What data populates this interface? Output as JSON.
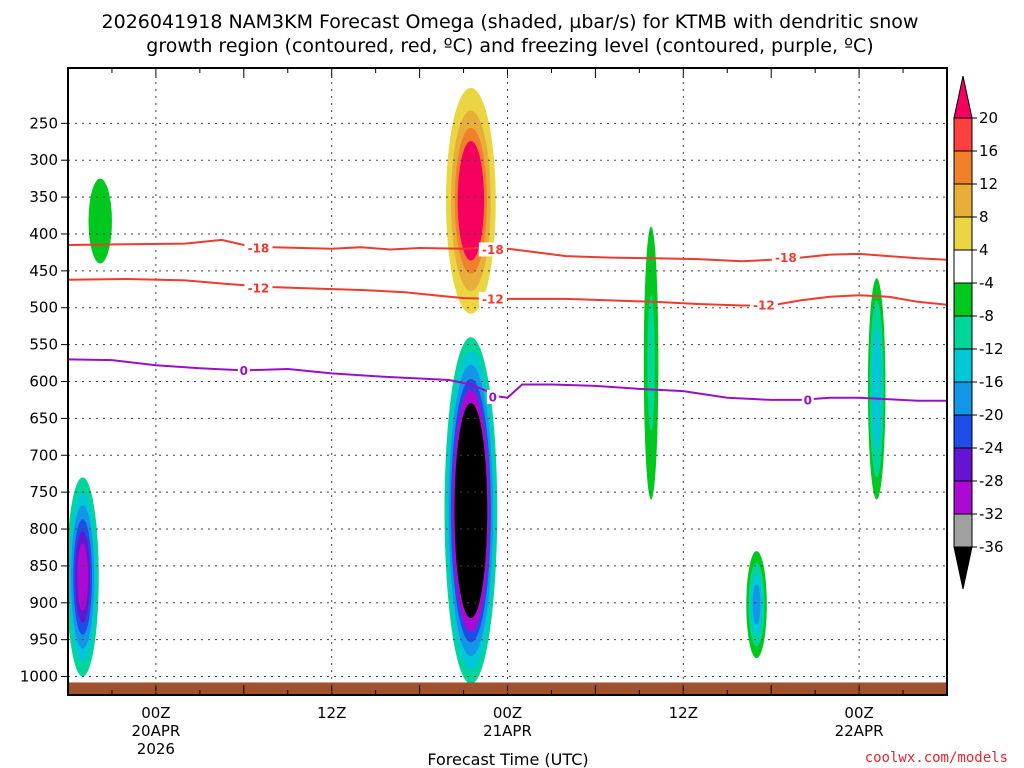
{
  "chart_data": {
    "type": "heatmap",
    "title_line1": "2026041918 NAM3KM Forecast Omega (shaded, µbar/s) for KTMB with dendritic snow",
    "title_line2": "growth region (contoured, red, ºC) and freezing level (contoured, purple, ºC)",
    "xlabel": "Forecast Time (UTC)",
    "credit": "coolwx.com/models",
    "x_unit": "forecast hours",
    "xlim": [
      0,
      60
    ],
    "x_ticks": [
      {
        "h": 6,
        "line1": "00Z",
        "line2": "20APR",
        "line3": "2026"
      },
      {
        "h": 18,
        "line1": "12Z"
      },
      {
        "h": 30,
        "line1": "00Z",
        "line2": "21APR"
      },
      {
        "h": 42,
        "line1": "12Z"
      },
      {
        "h": 54,
        "line1": "00Z",
        "line2": "22APR"
      }
    ],
    "ylim": [
      1025,
      175
    ],
    "y_ticks": [
      250,
      300,
      350,
      400,
      450,
      500,
      550,
      600,
      650,
      700,
      750,
      800,
      850,
      900,
      950,
      1000
    ],
    "colorbar": {
      "labels": [
        "20",
        "16",
        "12",
        "8",
        "4",
        "-4",
        "-8",
        "-12",
        "-16",
        "-20",
        "-24",
        "-28",
        "-32",
        "-36"
      ],
      "colors": [
        "#f5005f",
        "#ff4040",
        "#f0802a",
        "#e8ae3a",
        "#ecd543",
        "#ffffff",
        "#00c81e",
        "#00d69a",
        "#00c8d6",
        "#1496e8",
        "#1e4ce8",
        "#6414d2",
        "#aa0ad2",
        "#a0a0a0",
        "#000000"
      ]
    },
    "dgz_contours": [
      {
        "level": "-18",
        "label": "-18",
        "color": "#ee3a2f",
        "x": [
          0,
          4,
          8,
          10.5,
          12,
          14,
          18,
          20,
          22,
          24,
          27,
          28,
          30,
          32,
          34,
          37,
          40,
          43,
          46,
          48,
          50,
          52,
          54,
          56,
          58,
          60
        ],
        "p": [
          415,
          414,
          413,
          408,
          415,
          418,
          420,
          418,
          421,
          419,
          420,
          419,
          420,
          425,
          430,
          432,
          433,
          434,
          437,
          435,
          432,
          428,
          427,
          430,
          433,
          435
        ]
      },
      {
        "level": "-12",
        "label": "-12",
        "color": "#ee3a2f",
        "x": [
          0,
          4,
          8,
          11,
          14,
          17,
          20,
          23,
          25,
          27,
          29,
          31,
          34,
          37,
          40,
          43,
          46,
          48,
          50,
          52,
          54,
          56,
          58,
          60
        ],
        "p": [
          462,
          461,
          463,
          468,
          472,
          474,
          476,
          479,
          483,
          487,
          488,
          488,
          488,
          490,
          492,
          495,
          497,
          497,
          490,
          485,
          483,
          485,
          492,
          496
        ]
      }
    ],
    "freezing_contour": {
      "level": "0",
      "label": "0",
      "color": "#9a10c8",
      "x": [
        0,
        3,
        6,
        9,
        12,
        15,
        18,
        21,
        24,
        26,
        27.5,
        28.5,
        29.3,
        30,
        31,
        33,
        36,
        39,
        42,
        45,
        48,
        50,
        52,
        54,
        56,
        58,
        60
      ],
      "p": [
        570,
        571,
        578,
        582,
        585,
        583,
        589,
        593,
        596,
        598,
        604,
        612,
        620,
        622,
        604,
        604,
        606,
        610,
        613,
        622,
        625,
        625,
        622,
        622,
        624,
        626,
        626
      ]
    },
    "contour_labels": [
      {
        "text": "-18",
        "x": 13,
        "p": 419,
        "color": "#ee3a2f"
      },
      {
        "text": "-18",
        "x": 29,
        "p": 421,
        "color": "#ee3a2f"
      },
      {
        "text": "-18",
        "x": 49,
        "p": 432,
        "color": "#ee3a2f"
      },
      {
        "text": "-12",
        "x": 13,
        "p": 473,
        "color": "#ee3a2f"
      },
      {
        "text": "-12",
        "x": 29,
        "p": 488,
        "color": "#ee3a2f"
      },
      {
        "text": "-12",
        "x": 47.5,
        "p": 496,
        "color": "#ee3a2f"
      },
      {
        "text": "0",
        "x": 12,
        "p": 585,
        "color": "#9a10c8"
      },
      {
        "text": "0",
        "x": 29,
        "p": 621,
        "color": "#9a10c8"
      },
      {
        "text": "0",
        "x": 50.5,
        "p": 625,
        "color": "#9a10c8"
      }
    ],
    "omega_regions": [
      {
        "name": "strong-ascent-core",
        "x": 27.5,
        "w": 3.6,
        "p1": 540,
        "p2": 1010,
        "bands": [
          {
            "value": -8,
            "scale": 1.0
          },
          {
            "value": -12,
            "scale": 0.92
          },
          {
            "value": -16,
            "scale": 0.84
          },
          {
            "value": -20,
            "scale": 0.76
          },
          {
            "value": -28,
            "scale": 0.7
          },
          {
            "value": -36,
            "scale": 0.62
          }
        ]
      },
      {
        "name": "upper-subsidence",
        "x": 27.5,
        "w": 4.0,
        "p1": 175,
        "p2": 535,
        "bands": [
          {
            "value": 4,
            "scale": 1.0
          },
          {
            "value": 8,
            "scale": 0.85
          },
          {
            "value": 12,
            "scale": 0.68
          },
          {
            "value": 16,
            "scale": 0.55
          },
          {
            "value": 20,
            "scale": 0.45
          }
        ]
      },
      {
        "name": "low-level-ascent-left",
        "x": 1.0,
        "w": 2.2,
        "p1": 730,
        "p2": 1000,
        "bands": [
          {
            "value": -8,
            "scale": 1.0
          },
          {
            "value": -12,
            "scale": 0.85
          },
          {
            "value": -16,
            "scale": 0.72
          },
          {
            "value": -20,
            "scale": 0.58
          },
          {
            "value": -24,
            "scale": 0.46
          },
          {
            "value": -28,
            "scale": 0.34
          }
        ]
      },
      {
        "name": "mid-ascent-left",
        "x": 2.2,
        "w": 1.6,
        "p1": 325,
        "p2": 440,
        "bands": [
          {
            "value": -4,
            "scale": 1.0
          }
        ]
      },
      {
        "name": "ascent-44h",
        "x": 39.8,
        "w": 1.0,
        "p1": 390,
        "p2": 760,
        "bands": [
          {
            "value": -4,
            "scale": 1.0
          },
          {
            "value": -8,
            "scale": 0.5
          }
        ]
      },
      {
        "name": "ascent-55h",
        "x": 55.2,
        "w": 1.2,
        "p1": 460,
        "p2": 760,
        "bands": [
          {
            "value": -4,
            "scale": 1.0
          },
          {
            "value": -8,
            "scale": 0.8
          },
          {
            "value": -12,
            "scale": 0.55
          }
        ]
      },
      {
        "name": "ascent-47h",
        "x": 47.0,
        "w": 1.4,
        "p1": 830,
        "p2": 975,
        "bands": [
          {
            "value": -4,
            "scale": 1.0
          },
          {
            "value": -8,
            "scale": 0.78
          },
          {
            "value": -12,
            "scale": 0.58
          },
          {
            "value": -16,
            "scale": 0.38
          }
        ]
      }
    ],
    "ground_layer": {
      "p1": 1008,
      "p2": 1025,
      "color": "#a0522d"
    }
  }
}
